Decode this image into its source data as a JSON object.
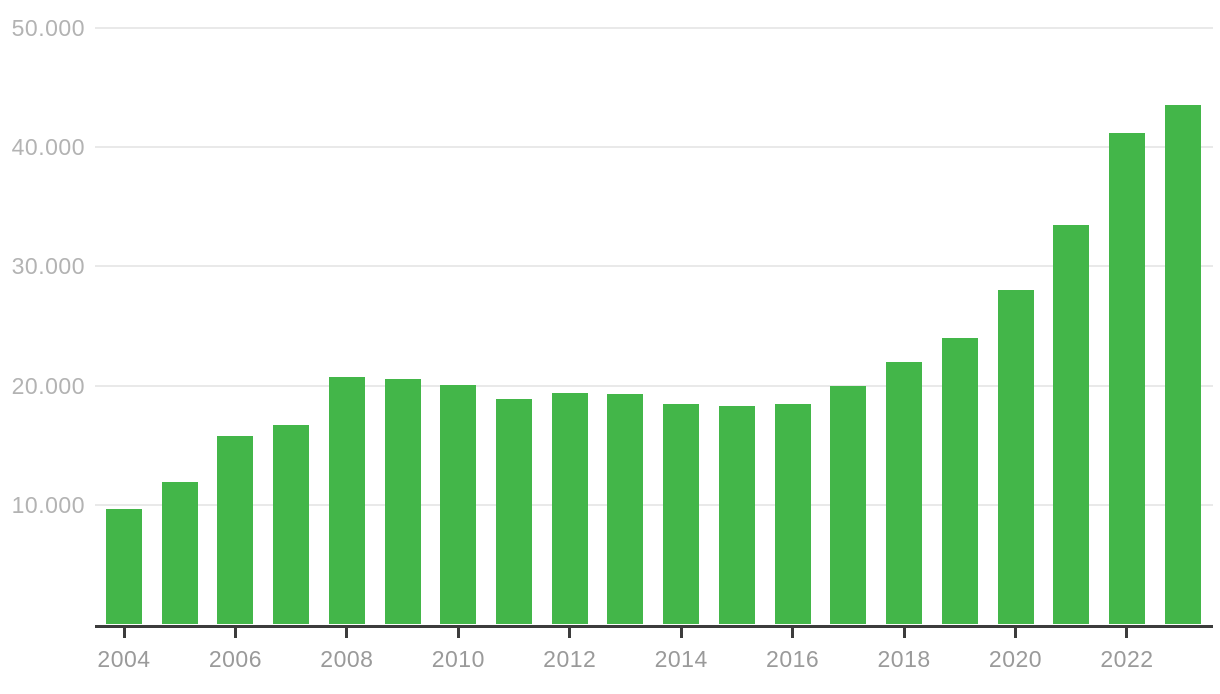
{
  "chart_data": {
    "type": "bar",
    "title": "",
    "xlabel": "",
    "ylabel": "",
    "categories": [
      2004,
      2005,
      2006,
      2007,
      2008,
      2009,
      2010,
      2011,
      2012,
      2013,
      2014,
      2015,
      2016,
      2017,
      2018,
      2019,
      2020,
      2021,
      2022,
      2023
    ],
    "values": [
      9700,
      11900,
      15800,
      16700,
      20700,
      20600,
      20100,
      18900,
      19400,
      19300,
      18500,
      18300,
      18500,
      20000,
      22000,
      24000,
      28000,
      33500,
      41200,
      43500
    ],
    "ylim": [
      0,
      50000
    ],
    "ytick_values": [
      10000,
      20000,
      30000,
      40000,
      50000
    ],
    "ytick_labels": [
      "10.000",
      "20.000",
      "30.000",
      "40.000",
      "50.000"
    ],
    "xtick_labels": [
      "2004",
      "2006",
      "2008",
      "2010",
      "2012",
      "2014",
      "2016",
      "2018",
      "2020",
      "2022"
    ],
    "xtick_years": [
      2004,
      2006,
      2008,
      2010,
      2012,
      2014,
      2016,
      2018,
      2020,
      2022
    ],
    "grid": true,
    "legend": "none",
    "colors": {
      "bar": "#43b649",
      "gridline": "#e9e9e9",
      "axis_line": "#3c3c3c",
      "y_label": "#b3b3b3",
      "x_label": "#9a9a9a",
      "background": "#ffffff"
    }
  }
}
